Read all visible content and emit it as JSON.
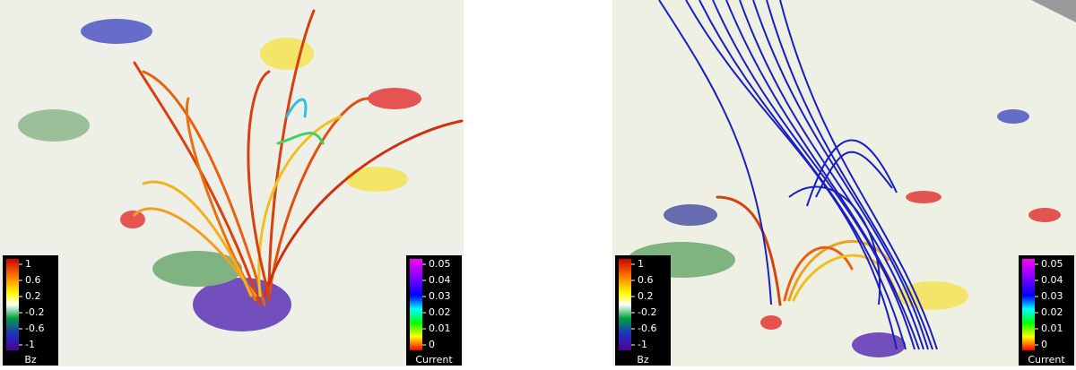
{
  "panels": [
    {
      "bz": {
        "label": "Bz",
        "ticks": [
          1,
          0.6,
          0.2,
          -0.2,
          -0.6,
          -1
        ]
      },
      "current": {
        "label": "Current",
        "ticks": [
          0.05,
          0.04,
          0.03,
          0.02,
          0.01,
          0
        ]
      }
    },
    {
      "bz": {
        "label": "Bz",
        "ticks": [
          1,
          0.6,
          0.2,
          -0.2,
          -0.6,
          -1
        ]
      },
      "current": {
        "label": "Current",
        "ticks": [
          0.05,
          0.04,
          0.03,
          0.02,
          0.01,
          0
        ]
      }
    }
  ]
}
